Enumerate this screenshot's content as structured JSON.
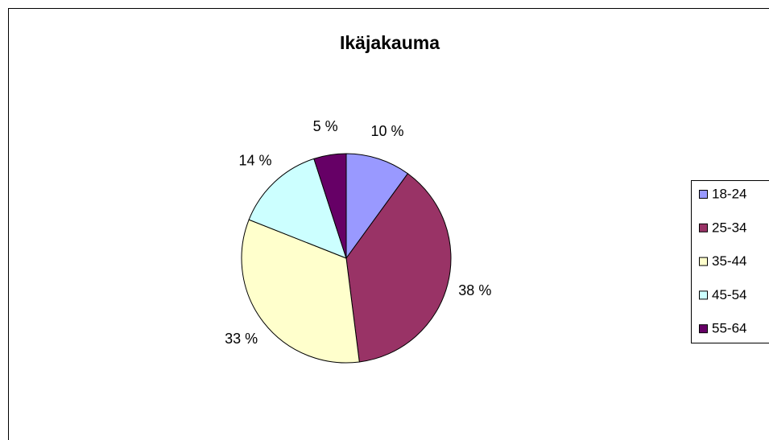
{
  "chart_data": {
    "type": "pie",
    "title": "Ikäjakauma",
    "categories": [
      "18-24",
      "25-34",
      "35-44",
      "45-54",
      "55-64"
    ],
    "values": [
      10,
      38,
      33,
      14,
      5
    ],
    "value_labels": [
      "10 %",
      "38 %",
      "33 %",
      "14 %",
      "5 %"
    ],
    "colors": [
      "#9999ff",
      "#993366",
      "#ffffcc",
      "#ccffff",
      "#660066"
    ],
    "legend": "right"
  }
}
